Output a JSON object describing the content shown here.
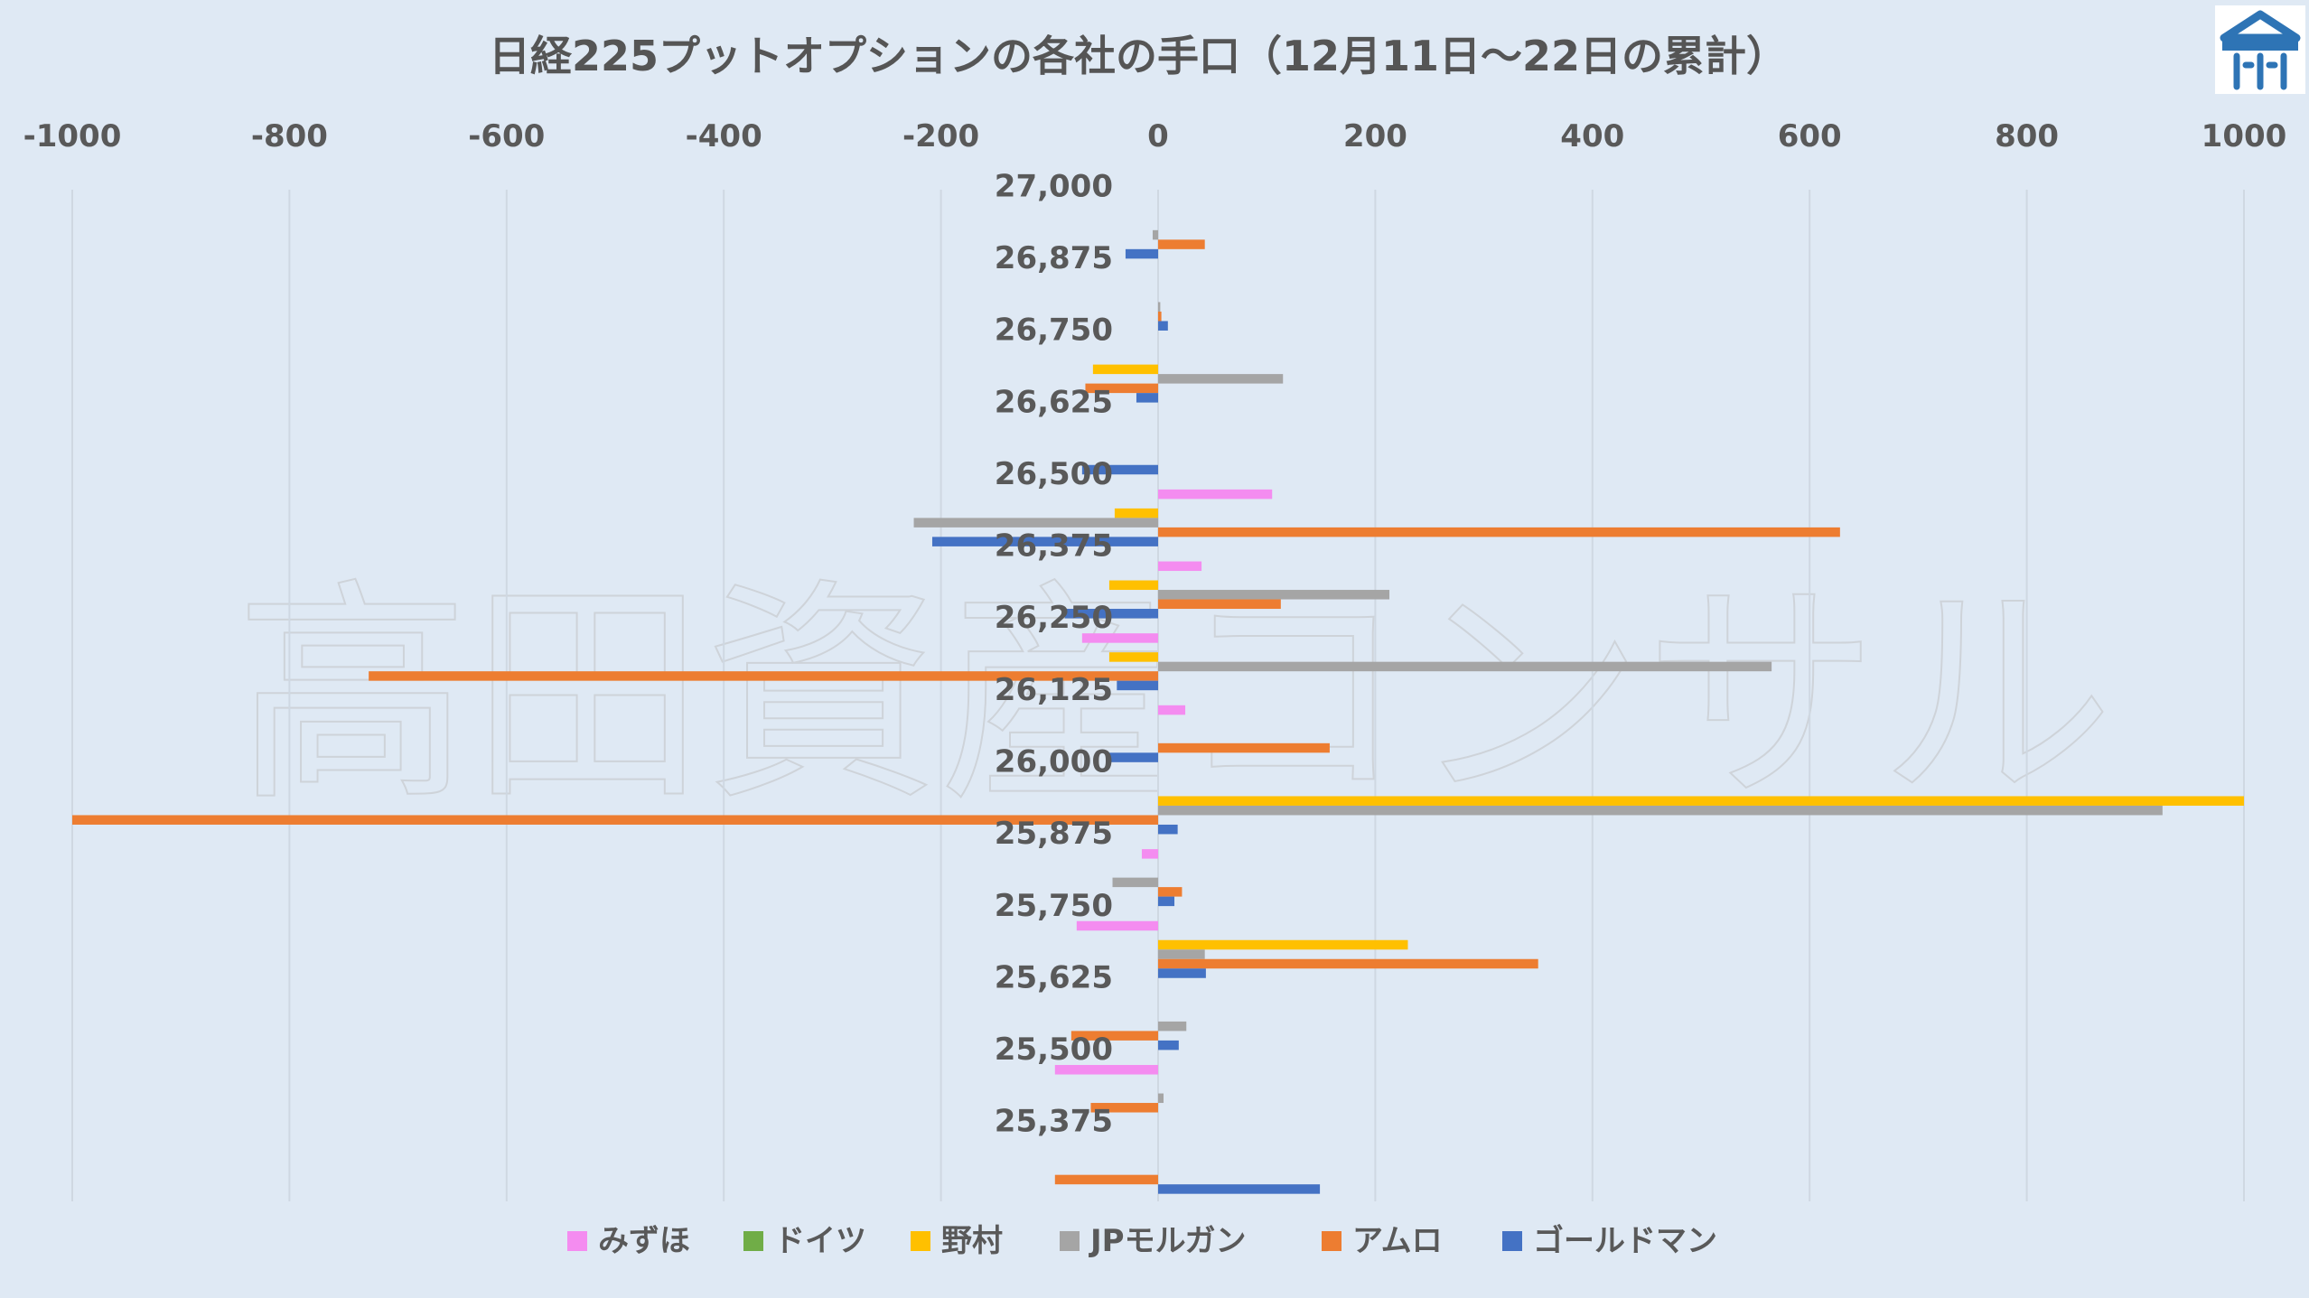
{
  "chart_data": {
    "type": "bar",
    "orientation": "horizontal",
    "title": "日経225プットオプションの各社の手口（12月11日～22日の累計）",
    "watermark": "高田資産コンサル",
    "xlim": [
      -1000,
      1000
    ],
    "xticks": [
      -1000,
      -800,
      -600,
      -400,
      -200,
      0,
      200,
      400,
      600,
      800,
      1000
    ],
    "grid": true,
    "legend_position": "bottom",
    "categories": [
      "27,000",
      "26,875",
      "26,750",
      "26,625",
      "26,500",
      "26,375",
      "26,250",
      "26,125",
      "26,000",
      "25,875",
      "25,750",
      "25,625",
      "25,500",
      "25,375"
    ],
    "series": [
      {
        "name": "みずほ",
        "color": "#f48cf0",
        "values": [
          0,
          0,
          0,
          0,
          105,
          40,
          -70,
          25,
          0,
          -15,
          -75,
          0,
          -95,
          0
        ]
      },
      {
        "name": "ドイツ",
        "color": "#70ad47",
        "values": [
          0,
          0,
          0,
          0,
          0,
          0,
          0,
          0,
          0,
          0,
          0,
          0,
          0,
          0
        ]
      },
      {
        "name": "野村",
        "color": "#ffc000",
        "values": [
          0,
          0,
          -60,
          0,
          -40,
          -45,
          -45,
          0,
          1000,
          0,
          230,
          0,
          0,
          0
        ]
      },
      {
        "name": "JPモルガン",
        "color": "#a5a5a5",
        "values": [
          -5,
          2,
          115,
          0,
          -225,
          213,
          565,
          0,
          925,
          -42,
          43,
          26,
          5,
          0
        ]
      },
      {
        "name": "アムロ",
        "color": "#ed7d31",
        "values": [
          43,
          3,
          -67,
          0,
          628,
          113,
          -727,
          158,
          -1000,
          22,
          350,
          -80,
          -62,
          -95
        ]
      },
      {
        "name": "ゴールドマン",
        "color": "#4472c4",
        "values": [
          -30,
          9,
          -20,
          -70,
          -208,
          -86,
          -38,
          -46,
          18,
          15,
          44,
          19,
          0,
          149
        ]
      }
    ]
  },
  "logo": {
    "name": "takada-logo",
    "color": "#2e74b5"
  }
}
